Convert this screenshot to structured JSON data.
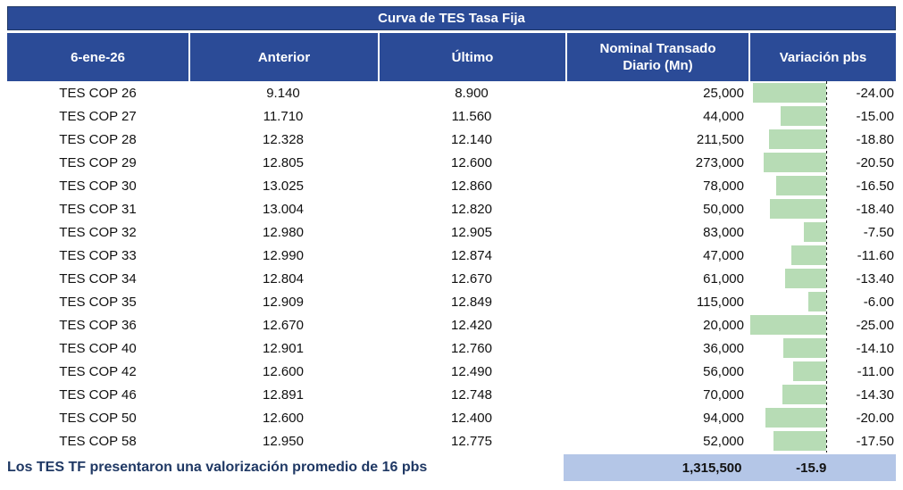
{
  "title": "Curva de TES Tasa Fija",
  "header": {
    "date": "6-ene-26",
    "anterior": "Anterior",
    "ultimo": "Último",
    "nominal": "Nominal Transado Diario (Mn)",
    "variacion": "Variación pbs"
  },
  "rows": [
    {
      "name": "TES COP 26",
      "anterior": "9.140",
      "ultimo": "8.900",
      "nominal": "25,000",
      "variacion": "-24.00"
    },
    {
      "name": "TES COP 27",
      "anterior": "11.710",
      "ultimo": "11.560",
      "nominal": "44,000",
      "variacion": "-15.00"
    },
    {
      "name": "TES COP 28",
      "anterior": "12.328",
      "ultimo": "12.140",
      "nominal": "211,500",
      "variacion": "-18.80"
    },
    {
      "name": "TES COP 29",
      "anterior": "12.805",
      "ultimo": "12.600",
      "nominal": "273,000",
      "variacion": "-20.50"
    },
    {
      "name": "TES COP 30",
      "anterior": "13.025",
      "ultimo": "12.860",
      "nominal": "78,000",
      "variacion": "-16.50"
    },
    {
      "name": "TES COP 31",
      "anterior": "13.004",
      "ultimo": "12.820",
      "nominal": "50,000",
      "variacion": "-18.40"
    },
    {
      "name": "TES COP 32",
      "anterior": "12.980",
      "ultimo": "12.905",
      "nominal": "83,000",
      "variacion": "-7.50"
    },
    {
      "name": "TES COP 33",
      "anterior": "12.990",
      "ultimo": "12.874",
      "nominal": "47,000",
      "variacion": "-11.60"
    },
    {
      "name": "TES COP 34",
      "anterior": "12.804",
      "ultimo": "12.670",
      "nominal": "61,000",
      "variacion": "-13.40"
    },
    {
      "name": "TES COP 35",
      "anterior": "12.909",
      "ultimo": "12.849",
      "nominal": "115,000",
      "variacion": "-6.00"
    },
    {
      "name": "TES COP 36",
      "anterior": "12.670",
      "ultimo": "12.420",
      "nominal": "20,000",
      "variacion": "-25.00"
    },
    {
      "name": "TES COP 40",
      "anterior": "12.901",
      "ultimo": "12.760",
      "nominal": "36,000",
      "variacion": "-14.10"
    },
    {
      "name": "TES COP 42",
      "anterior": "12.600",
      "ultimo": "12.490",
      "nominal": "56,000",
      "variacion": "-11.00"
    },
    {
      "name": "TES COP 46",
      "anterior": "12.891",
      "ultimo": "12.748",
      "nominal": "70,000",
      "variacion": "-14.30"
    },
    {
      "name": "TES COP 50",
      "anterior": "12.600",
      "ultimo": "12.400",
      "nominal": "94,000",
      "variacion": "-20.00"
    },
    {
      "name": "TES COP 58",
      "anterior": "12.950",
      "ultimo": "12.775",
      "nominal": "52,000",
      "variacion": "-17.50"
    }
  ],
  "footer": {
    "note": "Los TES TF presentaron una valorización promedio de 16 pbs",
    "total_nominal": "1,315,500",
    "avg_variacion": "-15.9"
  },
  "colors": {
    "header_bg": "#2B4B97",
    "header_border": "#1F3864",
    "bar_green": "#B7DCB5",
    "footer_band_bg": "#B4C6E7",
    "footer_text": "#1F3864",
    "body_text": "#111111"
  },
  "chart_data": {
    "type": "table",
    "title": "Curva de TES Tasa Fija",
    "columns": [
      "6-ene-26",
      "Anterior",
      "Último",
      "Nominal Transado Diario (Mn)",
      "Variación pbs"
    ],
    "rows": [
      [
        "TES COP 26",
        9.14,
        8.9,
        25000,
        -24.0
      ],
      [
        "TES COP 27",
        11.71,
        11.56,
        44000,
        -15.0
      ],
      [
        "TES COP 28",
        12.328,
        12.14,
        211500,
        -18.8
      ],
      [
        "TES COP 29",
        12.805,
        12.6,
        273000,
        -20.5
      ],
      [
        "TES COP 30",
        13.025,
        12.86,
        78000,
        -16.5
      ],
      [
        "TES COP 31",
        13.004,
        12.82,
        50000,
        -18.4
      ],
      [
        "TES COP 32",
        12.98,
        12.905,
        83000,
        -7.5
      ],
      [
        "TES COP 33",
        12.99,
        12.874,
        47000,
        -11.6
      ],
      [
        "TES COP 34",
        12.804,
        12.67,
        61000,
        -13.4
      ],
      [
        "TES COP 35",
        12.909,
        12.849,
        115000,
        -6.0
      ],
      [
        "TES COP 36",
        12.67,
        12.42,
        20000,
        -25.0
      ],
      [
        "TES COP 40",
        12.901,
        12.76,
        36000,
        -14.1
      ],
      [
        "TES COP 42",
        12.6,
        12.49,
        56000,
        -11.0
      ],
      [
        "TES COP 46",
        12.891,
        12.748,
        70000,
        -14.3
      ],
      [
        "TES COP 50",
        12.6,
        12.4,
        94000,
        -20.0
      ],
      [
        "TES COP 58",
        12.95,
        12.775,
        52000,
        -17.5
      ]
    ],
    "data_bars": {
      "column": "Variación pbs",
      "type": "bar",
      "direction": "negative-left",
      "axis": 0,
      "scale_min": -25,
      "color": "#B7DCB5",
      "values": [
        -24.0,
        -15.0,
        -18.8,
        -20.5,
        -16.5,
        -18.4,
        -7.5,
        -11.6,
        -13.4,
        -6.0,
        -25.0,
        -14.1,
        -11.0,
        -14.3,
        -20.0,
        -17.5
      ]
    },
    "totals": {
      "nominal_total": 1315500,
      "variacion_average": -15.9
    },
    "note": "Los TES TF presentaron una valorización promedio de 16 pbs"
  }
}
